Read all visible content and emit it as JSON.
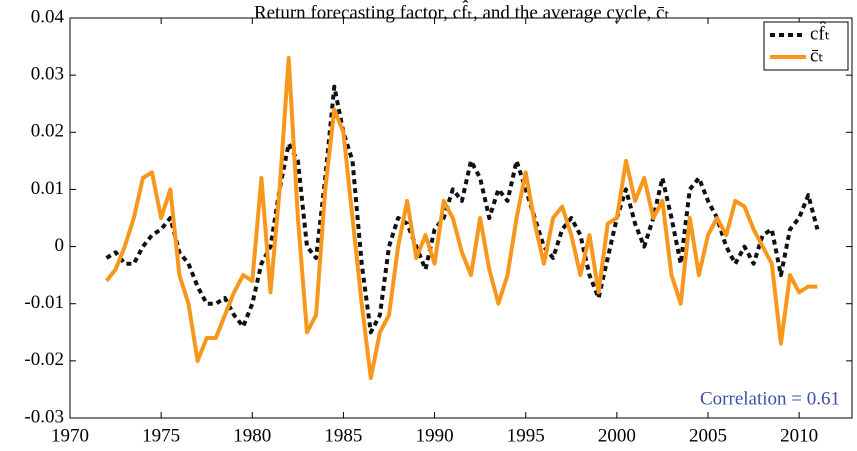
{
  "chart_data": {
    "type": "line",
    "title": "Return forecasting factor, cf̂ₜ, and the average cycle, c̄ₜ",
    "annotation": "Correlation = 0.61",
    "annotation_color": "#3b4fa5",
    "x": [
      1972,
      1972.5,
      1973,
      1973.5,
      1974,
      1974.5,
      1975,
      1975.5,
      1976,
      1976.5,
      1977,
      1977.5,
      1978,
      1978.5,
      1979,
      1979.5,
      1980,
      1980.5,
      1981,
      1981.5,
      1982,
      1982.5,
      1983,
      1983.5,
      1984,
      1984.5,
      1985,
      1985.5,
      1986,
      1986.5,
      1987,
      1987.5,
      1988,
      1988.5,
      1989,
      1989.5,
      1990,
      1990.5,
      1991,
      1991.5,
      1992,
      1992.5,
      1993,
      1993.5,
      1994,
      1994.5,
      1995,
      1995.5,
      1996,
      1996.5,
      1997,
      1997.5,
      1998,
      1998.5,
      1999,
      1999.5,
      2000,
      2000.5,
      2001,
      2001.5,
      2002,
      2002.5,
      2003,
      2003.5,
      2004,
      2004.5,
      2005,
      2005.5,
      2006,
      2006.5,
      2007,
      2007.5,
      2008,
      2008.5,
      2009,
      2009.5,
      2010,
      2010.5,
      2011
    ],
    "series": [
      {
        "name": "cf̂ₜ",
        "color": "#111111",
        "dashed": true,
        "values": [
          -0.002,
          -0.001,
          -0.003,
          -0.003,
          0.0,
          0.002,
          0.003,
          0.005,
          -0.001,
          -0.003,
          -0.007,
          -0.01,
          -0.01,
          -0.009,
          -0.012,
          -0.014,
          -0.01,
          -0.003,
          0.0,
          0.01,
          0.018,
          0.015,
          0.0,
          -0.002,
          0.012,
          0.028,
          0.02,
          0.015,
          -0.003,
          -0.015,
          -0.012,
          0.0,
          0.005,
          0.004,
          0.0,
          -0.004,
          0.003,
          0.005,
          0.01,
          0.008,
          0.015,
          0.012,
          0.005,
          0.01,
          0.008,
          0.015,
          0.01,
          0.005,
          0.0,
          -0.002,
          0.003,
          0.005,
          0.002,
          -0.005,
          -0.009,
          -0.002,
          0.005,
          0.01,
          0.004,
          0.0,
          0.005,
          0.012,
          0.005,
          -0.003,
          0.01,
          0.012,
          0.008,
          0.005,
          0.0,
          -0.003,
          0.0,
          -0.003,
          0.002,
          0.003,
          -0.005,
          0.003,
          0.005,
          0.009,
          0.003
        ]
      },
      {
        "name": "c̄ₜ",
        "color": "#f7971e",
        "dashed": false,
        "values": [
          -0.006,
          -0.004,
          0.0,
          0.005,
          0.012,
          0.013,
          0.005,
          0.01,
          -0.005,
          -0.01,
          -0.02,
          -0.016,
          -0.016,
          -0.012,
          -0.008,
          -0.005,
          -0.006,
          0.012,
          -0.008,
          0.01,
          0.033,
          0.005,
          -0.015,
          -0.012,
          0.01,
          0.024,
          0.02,
          0.005,
          -0.01,
          -0.023,
          -0.015,
          -0.012,
          0.0,
          0.008,
          -0.002,
          0.002,
          -0.003,
          0.008,
          0.005,
          -0.001,
          -0.005,
          0.005,
          -0.004,
          -0.01,
          -0.005,
          0.005,
          0.013,
          0.004,
          -0.003,
          0.005,
          0.007,
          0.002,
          -0.005,
          0.002,
          -0.008,
          0.004,
          0.005,
          0.015,
          0.008,
          0.012,
          0.005,
          0.008,
          -0.005,
          -0.01,
          0.005,
          -0.005,
          0.002,
          0.005,
          0.002,
          0.008,
          0.007,
          0.003,
          0.0,
          -0.003,
          -0.017,
          -0.005,
          -0.008,
          -0.007,
          -0.007
        ]
      }
    ],
    "xlim": [
      1970,
      2012.9
    ],
    "xticks": [
      1970,
      1975,
      1980,
      1985,
      1990,
      1995,
      2000,
      2005,
      2010
    ],
    "ylim": [
      -0.03,
      0.04
    ],
    "yticks": [
      0.04,
      0.03,
      0.02,
      0.01,
      0,
      -0.01,
      -0.02,
      -0.03
    ],
    "legend": "upper right"
  }
}
